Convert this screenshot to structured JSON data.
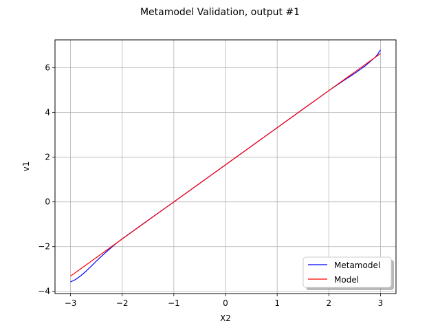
{
  "chart_data": {
    "type": "line",
    "title": "Metamodel Validation, output #1",
    "xlabel": "X2",
    "ylabel": "v1",
    "xlim": [
      -3.3,
      3.3
    ],
    "ylim": [
      -4.1,
      7.25
    ],
    "xticks": [
      -3,
      -2,
      -1,
      0,
      1,
      2,
      3
    ],
    "xtick_labels": [
      "−3",
      "−2",
      "−1",
      "0",
      "1",
      "2",
      "3"
    ],
    "yticks": [
      -4,
      -2,
      0,
      2,
      4,
      6
    ],
    "ytick_labels": [
      "−4",
      "−2",
      "0",
      "2",
      "4",
      "6"
    ],
    "grid": true,
    "legend_position": "lower-right",
    "series": [
      {
        "name": "Metamodel",
        "color": "#0000ff",
        "x": [
          -3.0,
          -2.9,
          -2.8,
          -2.7,
          -2.6,
          -2.5,
          -2.4,
          -2.3,
          -2.2,
          -2.1,
          -2.0,
          -1.5,
          -1.0,
          -0.5,
          0.0,
          0.5,
          1.0,
          1.5,
          2.0,
          2.3,
          2.5,
          2.7,
          2.8,
          2.9,
          2.95,
          3.0
        ],
        "y": [
          -3.58,
          -3.47,
          -3.3,
          -3.1,
          -2.88,
          -2.65,
          -2.43,
          -2.22,
          -2.02,
          -1.83,
          -1.65,
          -0.82,
          0.0,
          0.83,
          1.66,
          2.49,
          3.32,
          4.15,
          4.98,
          5.45,
          5.75,
          6.08,
          6.28,
          6.48,
          6.62,
          6.8
        ]
      },
      {
        "name": "Model",
        "color": "#ff0000",
        "x": [
          -3.0,
          -2.5,
          -2.0,
          -1.5,
          -1.0,
          -0.5,
          0.0,
          0.5,
          1.0,
          1.5,
          2.0,
          2.5,
          3.0
        ],
        "y": [
          -3.32,
          -2.49,
          -1.66,
          -0.83,
          0.0,
          0.83,
          1.66,
          2.49,
          3.32,
          4.15,
          4.98,
          5.81,
          6.64
        ]
      }
    ]
  }
}
